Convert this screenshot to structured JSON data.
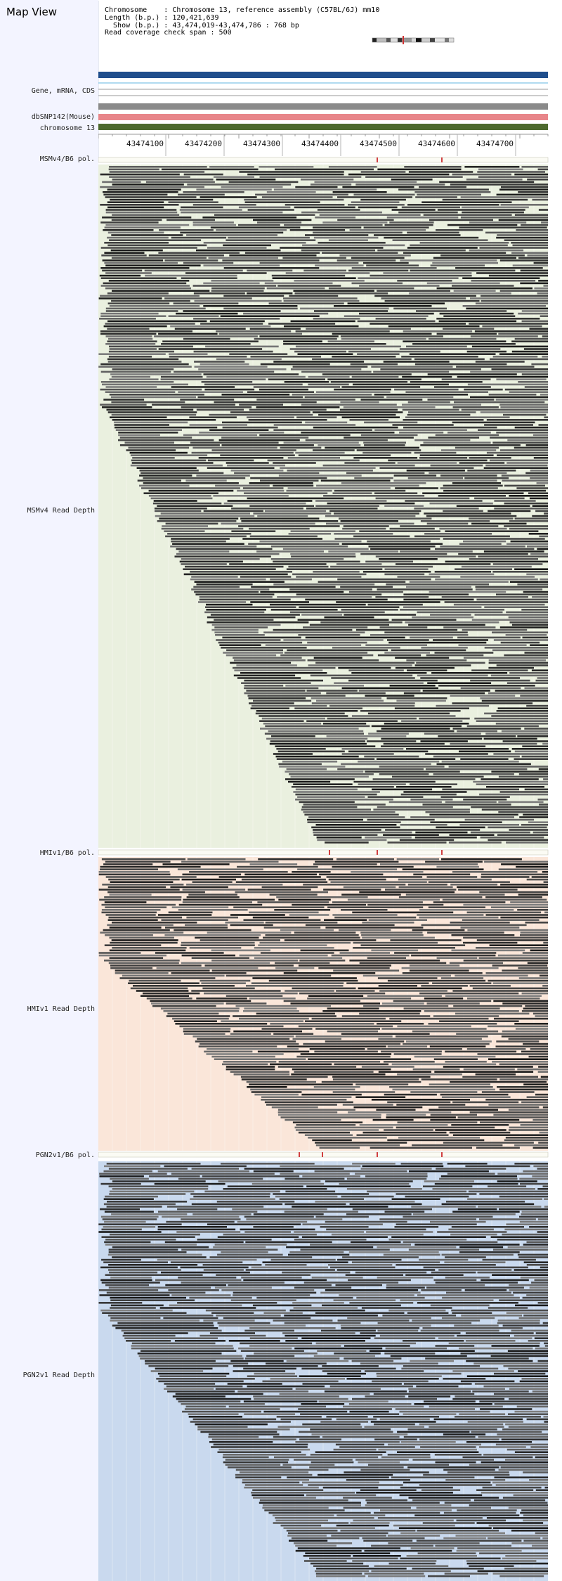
{
  "page_title": "Map View",
  "info": {
    "chromosome": "Chromosome    : Chromosome 13, reference assembly (C57BL/6J) mm10",
    "length": "Length (b.p.) : 120,421,639",
    "show": "  Show (b.p.) : 43,474,019-43,474,786 : 768 bp",
    "coverage": "Read coverage check span : 500"
  },
  "tracks": {
    "gene": "Gene, mRNA, CDS",
    "dbsnp": "dbSNP142(Mouse)",
    "chrom": "chromosome 13",
    "msm_pol": "MSMv4/B6 pol.",
    "msm_depth": "MSMv4 Read Depth",
    "hmi_pol": "HMIv1/B6 pol.",
    "hmi_depth": "HMIv1 Read Depth",
    "pgn_pol": "PGN2v1/B6 pol.",
    "pgn_depth": "PGN2v1 Read Depth"
  },
  "ruler": {
    "ticks": [
      "43474100",
      "43474200",
      "43474300",
      "43474400",
      "43474500",
      "43474600",
      "43474700"
    ]
  },
  "colors": {
    "gene_bar": "#1f4e8c",
    "dbsnp_bar": "#e8868a",
    "chrom_bar": "#4e6a2e",
    "msm_bg": "#eaf0df",
    "hmi_bg": "#fae6d9",
    "pgn_bg": "#c9d9ee",
    "polymorphism": "#d04040"
  }
}
